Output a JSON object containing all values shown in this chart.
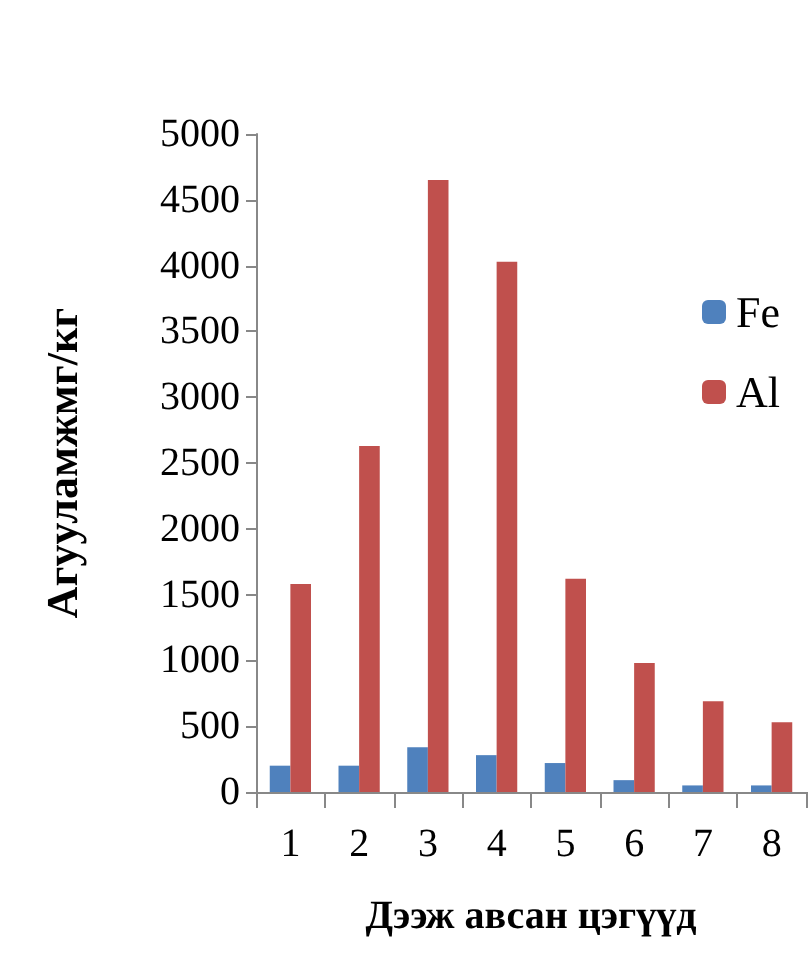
{
  "chart_data": {
    "type": "bar",
    "xlabel": "Дээж авсан цэгүүд",
    "ylabel": "Агууламжмг/кг",
    "categories": [
      "1",
      "2",
      "3",
      "4",
      "5",
      "6",
      "7",
      "8"
    ],
    "series": [
      {
        "name": "Fe",
        "color": "#4f81bd",
        "values": [
          200,
          200,
          340,
          280,
          220,
          90,
          50,
          50
        ]
      },
      {
        "name": "Al",
        "color": "#c0504d",
        "values": [
          1580,
          2630,
          4650,
          4030,
          1620,
          980,
          690,
          530
        ]
      }
    ],
    "ylim": [
      0,
      5000
    ],
    "yticks": [
      0,
      500,
      1000,
      1500,
      2000,
      2500,
      3000,
      3500,
      4000,
      4500,
      5000
    ],
    "grid": false,
    "legend": "right"
  }
}
